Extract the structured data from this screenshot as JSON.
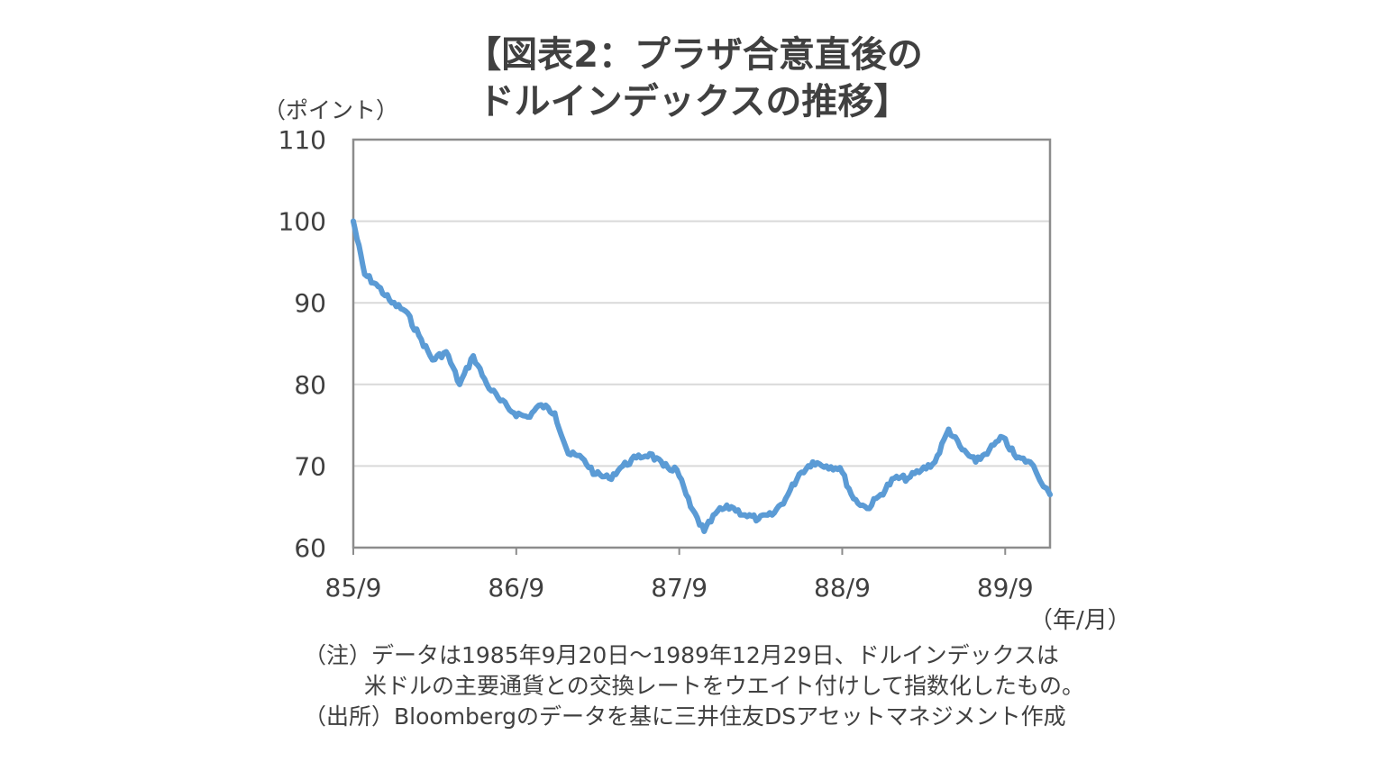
{
  "chart_data": {
    "type": "line",
    "title_line1": "【図表2：プラザ合意直後の",
    "title_line2": "ドルインデックスの推移】",
    "ylabel": "（ポイント）",
    "xlabel": "（年/月）",
    "ylim": [
      60,
      110
    ],
    "yticks": [
      "60",
      "70",
      "80",
      "90",
      "100",
      "110"
    ],
    "xticks": [
      "85/9",
      "86/9",
      "87/9",
      "88/9",
      "89/9"
    ],
    "xlim": [
      "1985-09",
      "1989-12"
    ],
    "grid": true,
    "series_color": "#5B9BD5",
    "series": [
      {
        "x": [
          "1985-09-20",
          "1985-10",
          "1985-11",
          "1985-12",
          "1986-01",
          "1986-02",
          "1986-03",
          "1986-04",
          "1986-05",
          "1986-06",
          "1986-07",
          "1986-08",
          "1986-09",
          "1986-10",
          "1986-11",
          "1986-12",
          "1987-01",
          "1987-02",
          "1987-03",
          "1987-04",
          "1987-05",
          "1987-06",
          "1987-07",
          "1987-08",
          "1987-09",
          "1987-10",
          "1987-11",
          "1987-12",
          "1988-01",
          "1988-02",
          "1988-03",
          "1988-04",
          "1988-05",
          "1988-06",
          "1988-07",
          "1988-08",
          "1988-09",
          "1988-10",
          "1988-11",
          "1988-12",
          "1989-01",
          "1989-02",
          "1989-03",
          "1989-04",
          "1989-05",
          "1989-06",
          "1989-07",
          "1989-08",
          "1989-09",
          "1989-10",
          "1989-11",
          "1989-12-29"
        ],
        "values": [
          100,
          93.5,
          92,
          90,
          89,
          86,
          83,
          84,
          80,
          83.5,
          80,
          78,
          76.5,
          76,
          77.5,
          76.5,
          71.5,
          71,
          69,
          68.5,
          70,
          71,
          71.5,
          70,
          69.5,
          65,
          62,
          64.5,
          65,
          64,
          63.5,
          64,
          66,
          69,
          70.5,
          70,
          69.8,
          66,
          64.8,
          66.5,
          68.5,
          68.5,
          69.5,
          70.5,
          74.5,
          72,
          70.5,
          72,
          73.5,
          71,
          70.5,
          66.5
        ]
      }
    ]
  },
  "notes": {
    "line1": "（注）データは1985年9月20日～1989年12月29日、ドルインデックスは",
    "line2": "米ドルの主要通貨との交換レートをウエイト付けして指数化したもの。",
    "line3": "（出所）Bloombergのデータを基に三井住友DSアセットマネジメント作成"
  }
}
